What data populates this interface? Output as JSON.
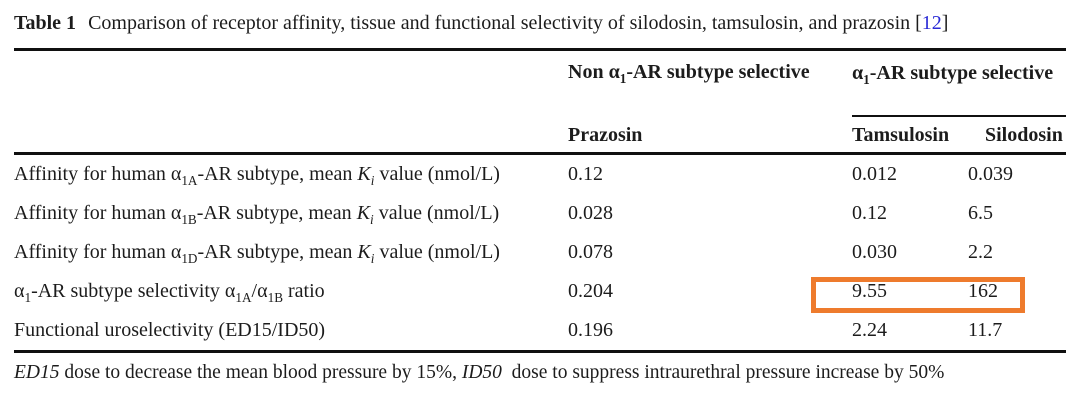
{
  "caption": {
    "label": "Table 1",
    "text": "Comparison of receptor affinity, tissue and functional selectivity of silodosin, tamsulosin, and prazosin",
    "citation_open": "[",
    "citation_number": "12",
    "citation_close": "]"
  },
  "colors": {
    "highlight_orange": "#ee7b2d",
    "citation_blue": "#2a2ad6",
    "text": "#1c1c1c"
  },
  "table": {
    "group_headers": {
      "non_selective_html": "Non α<sub>1</sub>-AR subtype selective",
      "selective_html": "α<sub>1</sub>-AR subtype selective"
    },
    "column_headers": {
      "prazosin": "Prazosin",
      "tamsulosin": "Tamsulosin",
      "silodosin": "Silodosin"
    },
    "rows": [
      {
        "label_html": "Affinity for human α<sub>1A</sub>-AR subtype, mean <i>K<sub>i</sub></i> value (nmol/L)",
        "prazosin": "0.12",
        "tamsulosin": "0.012",
        "silodosin": "0.039"
      },
      {
        "label_html": "Affinity for human α<sub>1B</sub>-AR subtype, mean <i>K<sub>i</sub></i> value (nmol/L)",
        "prazosin": "0.028",
        "tamsulosin": "0.12",
        "silodosin": "6.5"
      },
      {
        "label_html": "Affinity for human α<sub>1D</sub>-AR subtype, mean <i>K<sub>i</sub></i> value (nmol/L)",
        "prazosin": "0.078",
        "tamsulosin": "0.030",
        "silodosin": "2.2"
      },
      {
        "label_html": "α<sub>1</sub>-AR subtype selectivity α<sub>1A</sub>/α<sub>1B</sub> ratio",
        "prazosin": "0.204",
        "tamsulosin": "9.55",
        "silodosin": "162",
        "highlighted": true
      },
      {
        "label_html": "Functional uroselectivity (ED15/ID50)",
        "prazosin": "0.196",
        "tamsulosin": "2.24",
        "silodosin": "11.7"
      }
    ],
    "highlight": {
      "row_index": 3,
      "columns": [
        "tamsulosin",
        "silodosin"
      ],
      "border_color": "#ee7b2d"
    },
    "footnote_html": "<i>ED15</i> dose to decrease the mean blood pressure by 15%, <i>ID50</i>&nbsp; dose to suppress intraurethral pressure increase by 50%"
  }
}
